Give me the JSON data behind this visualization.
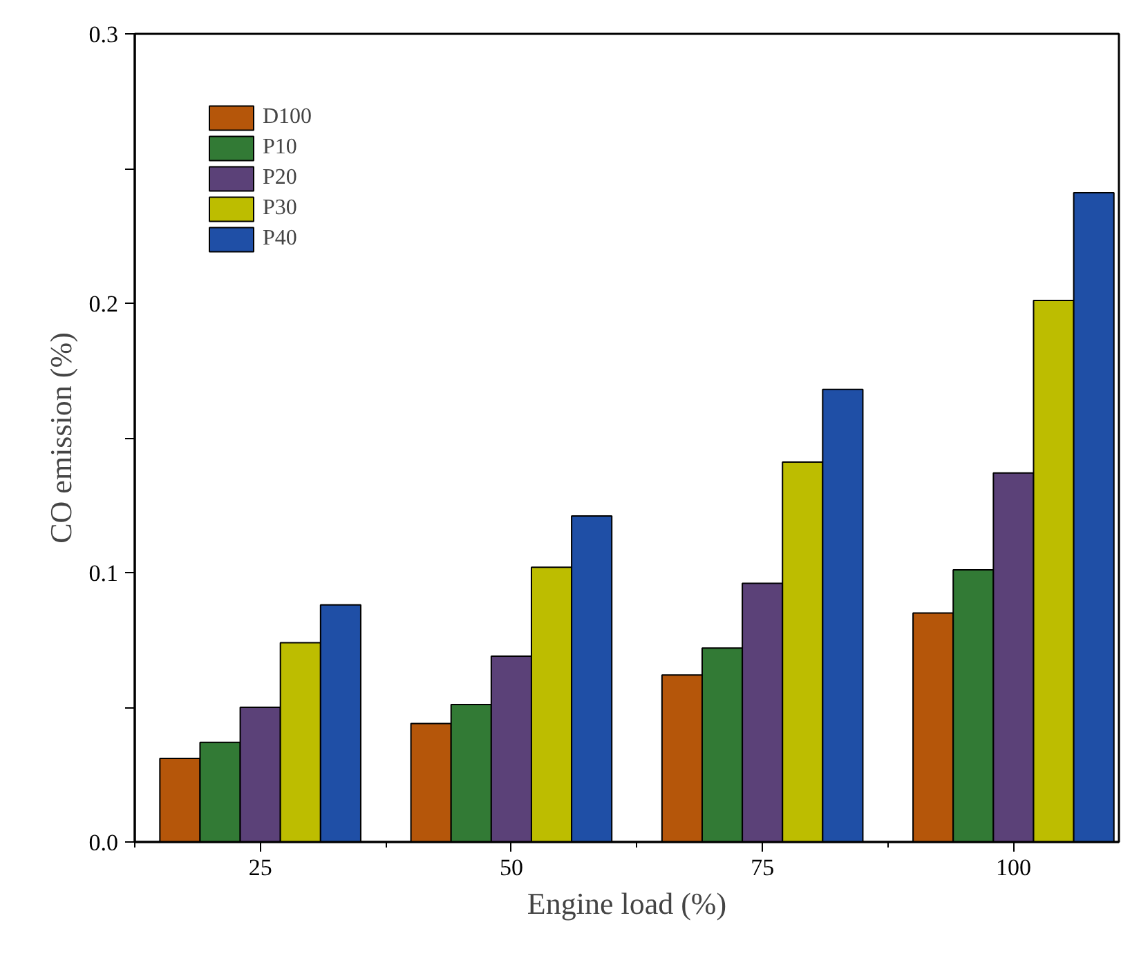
{
  "chart_data": {
    "type": "bar",
    "xlabel": "Engine load (%)",
    "ylabel": "CO emission (%)",
    "categories": [
      "25",
      "50",
      "75",
      "100"
    ],
    "series": [
      {
        "name": "D100",
        "color": "#b5560a",
        "values": [
          0.031,
          0.044,
          0.062,
          0.085
        ]
      },
      {
        "name": "P10",
        "color": "#327a35",
        "values": [
          0.037,
          0.051,
          0.072,
          0.101
        ]
      },
      {
        "name": "P20",
        "color": "#5b4178",
        "values": [
          0.05,
          0.069,
          0.096,
          0.137
        ]
      },
      {
        "name": "P30",
        "color": "#bdbd00",
        "values": [
          0.074,
          0.102,
          0.141,
          0.201
        ]
      },
      {
        "name": "P40",
        "color": "#1f4fa6",
        "values": [
          0.088,
          0.121,
          0.168,
          0.241
        ]
      }
    ],
    "ylim": [
      0,
      0.3
    ],
    "yticks": [
      {
        "value": 0,
        "label": "0.0"
      },
      {
        "value": 0.05,
        "label": null
      },
      {
        "value": 0.1,
        "label": "0.1"
      },
      {
        "value": 0.15,
        "label": null
      },
      {
        "value": 0.2,
        "label": "0.2"
      },
      {
        "value": 0.25,
        "label": null
      },
      {
        "value": 0.3,
        "label": "0.3"
      }
    ],
    "grid": false,
    "legend": "top left"
  }
}
